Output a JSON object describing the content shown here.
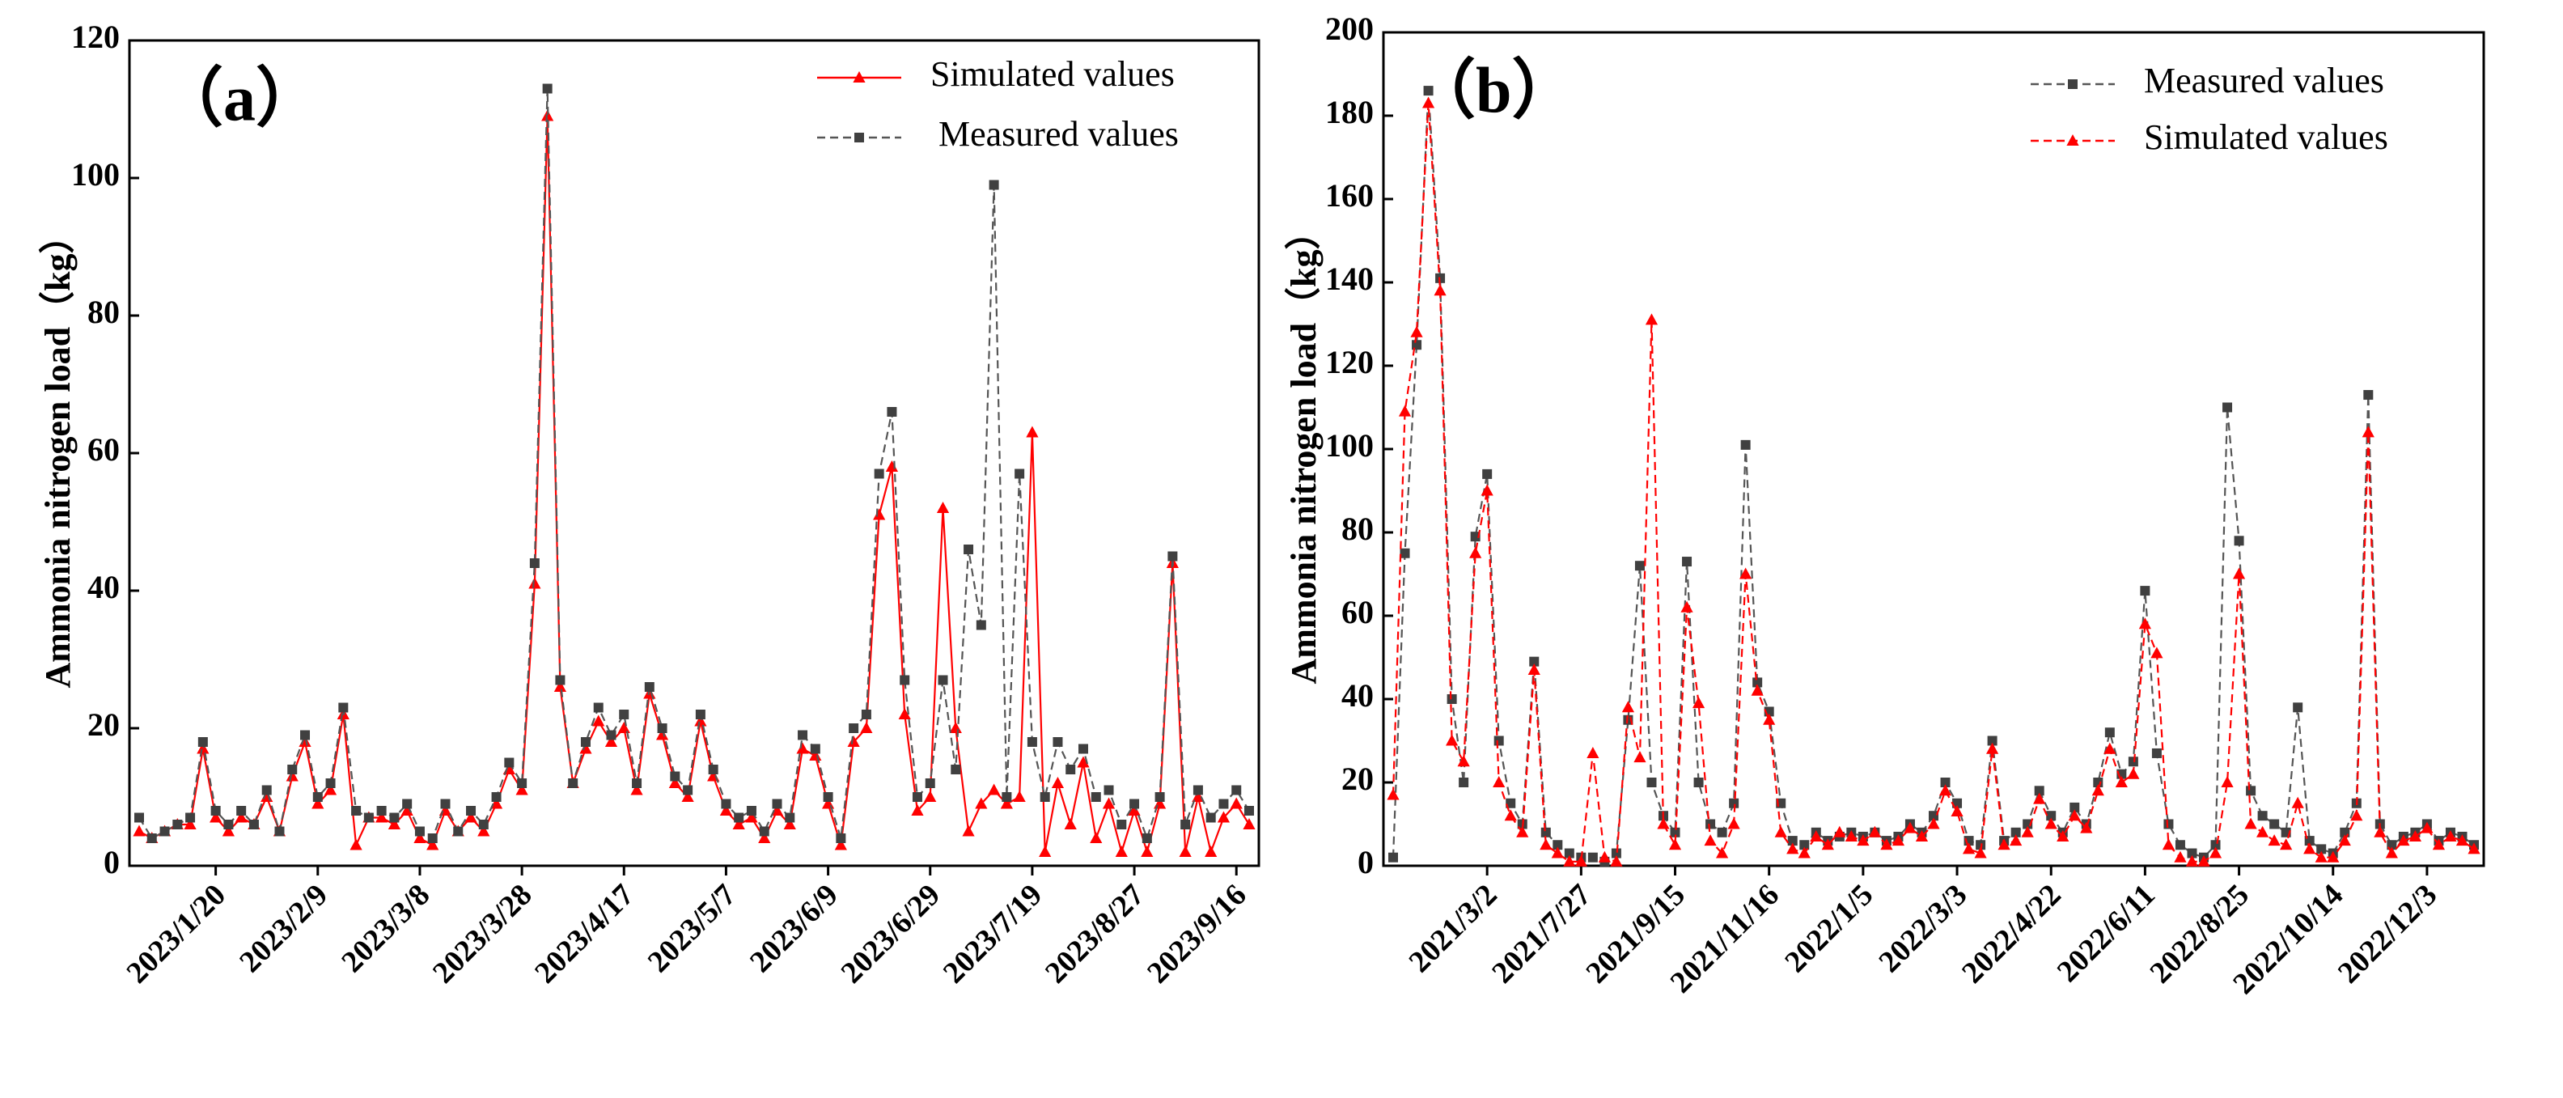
{
  "chart_data": [
    {
      "type": "line",
      "panel_label": "（a）",
      "ylabel": "Ammonia nitrogen load（kg）",
      "ylim": [
        0,
        120
      ],
      "yticks": [
        0,
        20,
        40,
        60,
        80,
        100,
        120
      ],
      "categories": [
        null,
        null,
        null,
        null,
        null,
        null,
        "2023/1/20",
        null,
        null,
        null,
        null,
        null,
        null,
        null,
        "2023/2/9",
        null,
        null,
        null,
        null,
        null,
        null,
        null,
        "2023/3/8",
        null,
        null,
        null,
        null,
        null,
        null,
        null,
        "2023/3/28",
        null,
        null,
        null,
        null,
        null,
        null,
        null,
        "2023/4/17",
        null,
        null,
        null,
        null,
        null,
        null,
        null,
        "2023/5/7",
        null,
        null,
        null,
        null,
        null,
        null,
        null,
        "2023/6/9",
        null,
        null,
        null,
        null,
        null,
        null,
        null,
        "2023/6/29",
        null,
        null,
        null,
        null,
        null,
        null,
        null,
        "2023/7/19",
        null,
        null,
        null,
        null,
        null,
        null,
        null,
        "2023/8/27",
        null,
        null,
        null,
        null,
        null,
        null,
        null,
        "2023/9/16",
        null
      ],
      "series": [
        {
          "name": "Simulated values",
          "color": "#ff0000",
          "line_style": "solid",
          "marker": "triangle",
          "values": [
            5,
            4,
            5,
            6,
            6,
            17,
            7,
            5,
            7,
            6,
            10,
            5,
            13,
            18,
            9,
            11,
            22,
            3,
            7,
            7,
            6,
            8,
            4,
            3,
            8,
            5,
            7,
            5,
            9,
            14,
            11,
            41,
            109,
            26,
            12,
            17,
            21,
            18,
            20,
            11,
            25,
            19,
            12,
            10,
            21,
            13,
            8,
            6,
            7,
            4,
            8,
            6,
            17,
            16,
            9,
            3,
            18,
            20,
            51,
            58,
            22,
            8,
            10,
            52,
            20,
            5,
            9,
            11,
            9,
            10,
            63,
            2,
            12,
            6,
            15,
            4,
            9,
            2,
            8,
            2,
            9,
            44,
            2,
            10,
            2,
            7,
            9,
            6
          ]
        },
        {
          "name": "Measured values",
          "color": "#555555",
          "line_style": "dashed",
          "marker": "square",
          "values": [
            7,
            4,
            5,
            6,
            7,
            18,
            8,
            6,
            8,
            6,
            11,
            5,
            14,
            19,
            10,
            12,
            23,
            8,
            7,
            8,
            7,
            9,
            5,
            4,
            9,
            5,
            8,
            6,
            10,
            15,
            12,
            44,
            113,
            27,
            12,
            18,
            23,
            19,
            22,
            12,
            26,
            20,
            13,
            11,
            22,
            14,
            9,
            7,
            8,
            5,
            9,
            7,
            19,
            17,
            10,
            4,
            20,
            22,
            57,
            66,
            27,
            10,
            12,
            27,
            14,
            46,
            35,
            99,
            10,
            57,
            18,
            10,
            18,
            14,
            17,
            10,
            11,
            6,
            9,
            4,
            10,
            45,
            6,
            11,
            7,
            9,
            11,
            8
          ]
        }
      ]
    },
    {
      "type": "line",
      "panel_label": "（b）",
      "ylabel": "Ammonia nitrogen load（kg）",
      "ylim": [
        0,
        200
      ],
      "yticks": [
        0,
        20,
        40,
        60,
        80,
        100,
        120,
        140,
        160,
        180,
        200
      ],
      "categories": [
        null,
        null,
        null,
        null,
        null,
        null,
        null,
        null,
        "2021/3/2",
        null,
        null,
        null,
        null,
        null,
        null,
        null,
        "2021/7/27",
        null,
        null,
        null,
        null,
        null,
        null,
        null,
        "2021/9/15",
        null,
        null,
        null,
        null,
        null,
        null,
        null,
        "2021/11/16",
        null,
        null,
        null,
        null,
        null,
        null,
        null,
        "2022/1/5",
        null,
        null,
        null,
        null,
        null,
        null,
        null,
        "2022/3/3",
        null,
        null,
        null,
        null,
        null,
        null,
        null,
        "2022/4/22",
        null,
        null,
        null,
        null,
        null,
        null,
        null,
        "2022/6/11",
        null,
        null,
        null,
        null,
        null,
        null,
        null,
        "2022/8/25",
        null,
        null,
        null,
        null,
        null,
        null,
        null,
        "2022/10/14",
        null,
        null,
        null,
        null,
        null,
        null,
        null,
        "2022/12/3",
        null,
        null,
        null,
        null
      ],
      "series": [
        {
          "name": "Measured values",
          "color": "#555555",
          "line_style": "dashed",
          "marker": "square",
          "values": [
            2,
            75,
            125,
            186,
            141,
            40,
            20,
            79,
            94,
            30,
            15,
            10,
            49,
            8,
            5,
            3,
            2,
            2,
            1,
            3,
            35,
            72,
            20,
            12,
            8,
            73,
            20,
            10,
            8,
            15,
            101,
            44,
            37,
            15,
            6,
            5,
            8,
            6,
            7,
            8,
            7,
            8,
            6,
            7,
            10,
            8,
            12,
            20,
            15,
            6,
            5,
            30,
            6,
            8,
            10,
            18,
            12,
            8,
            14,
            10,
            20,
            32,
            22,
            25,
            66,
            27,
            10,
            5,
            3,
            2,
            5,
            110,
            78,
            18,
            12,
            10,
            8,
            38,
            6,
            4,
            3,
            8,
            15,
            113,
            10,
            5,
            7,
            8,
            10,
            6,
            8,
            7,
            5
          ]
        },
        {
          "name": "Simulated values",
          "color": "#ff0000",
          "line_style": "dashed",
          "marker": "triangle",
          "values": [
            17,
            109,
            128,
            183,
            138,
            30,
            25,
            75,
            90,
            20,
            12,
            8,
            47,
            5,
            3,
            1,
            1,
            27,
            2,
            1,
            38,
            26,
            131,
            10,
            5,
            62,
            39,
            6,
            3,
            10,
            70,
            42,
            35,
            8,
            4,
            3,
            7,
            5,
            8,
            7,
            6,
            8,
            5,
            6,
            9,
            7,
            10,
            18,
            13,
            4,
            3,
            28,
            5,
            6,
            8,
            16,
            10,
            7,
            12,
            9,
            18,
            28,
            20,
            22,
            58,
            51,
            5,
            2,
            1,
            1,
            3,
            20,
            70,
            10,
            8,
            6,
            5,
            15,
            4,
            2,
            2,
            6,
            12,
            104,
            8,
            3,
            6,
            7,
            9,
            5,
            7,
            6,
            4
          ]
        }
      ]
    }
  ]
}
